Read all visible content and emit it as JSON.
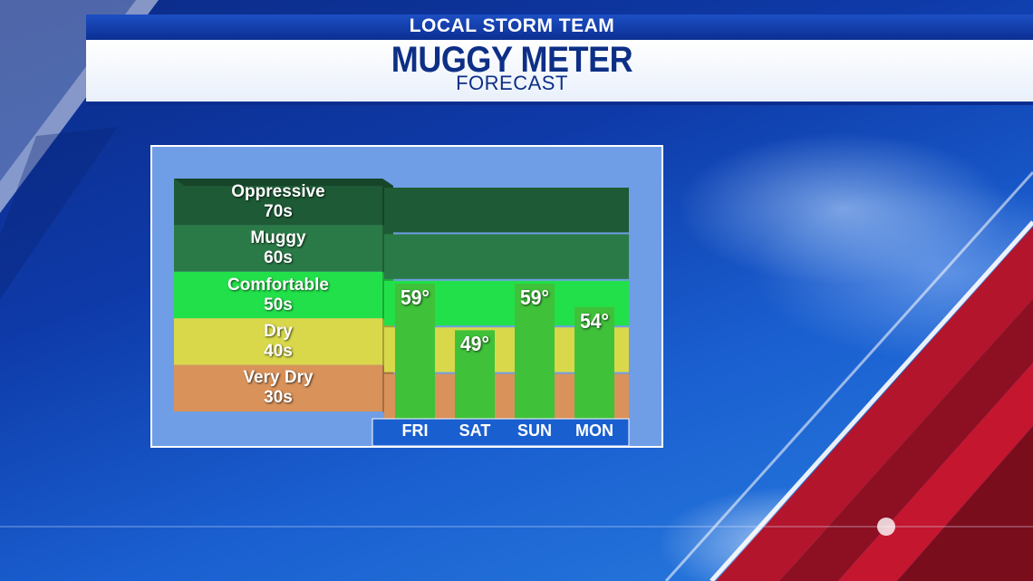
{
  "header": {
    "team": "LOCAL STORM TEAM",
    "title": "MUGGY METER",
    "subtitle": "FORECAST"
  },
  "colors": {
    "oppressive": "#1d5a35",
    "muggy": "#2a7a47",
    "comfortable": "#22e04a",
    "dry": "#d9d84a",
    "very_dry": "#d9925a",
    "bar": "#3fc23a"
  },
  "chart_data": {
    "type": "bar",
    "categories": [
      "FRI",
      "SAT",
      "SUN",
      "MON"
    ],
    "values": [
      59,
      49,
      59,
      54
    ],
    "value_labels": [
      "59°",
      "49°",
      "59°",
      "54°"
    ],
    "ylim": [
      30,
      80
    ],
    "bands": [
      {
        "name": "Oppressive",
        "range_label": "70s",
        "min": 70,
        "max": 80
      },
      {
        "name": "Muggy",
        "range_label": "60s",
        "min": 60,
        "max": 70
      },
      {
        "name": "Comfortable",
        "range_label": "50s",
        "min": 50,
        "max": 60
      },
      {
        "name": "Dry",
        "range_label": "40s",
        "min": 40,
        "max": 50
      },
      {
        "name": "Very Dry",
        "range_label": "30s",
        "min": 30,
        "max": 40
      }
    ],
    "grid": false,
    "legend": "left"
  }
}
